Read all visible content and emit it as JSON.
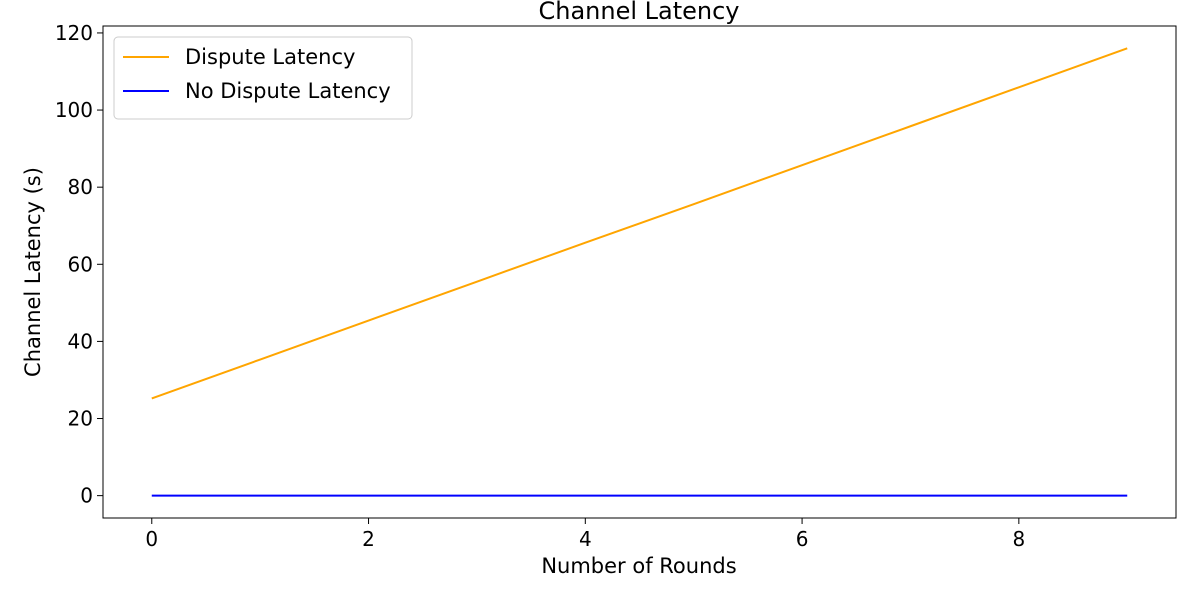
{
  "chart_data": {
    "type": "line",
    "title": "Channel Latency",
    "xlabel": "Number of Rounds",
    "ylabel": "Channel Latency (s)",
    "xlim": [
      -0.45,
      9.45
    ],
    "ylim": [
      -5.8,
      121.8
    ],
    "x_ticks": [
      0,
      2,
      4,
      6,
      8
    ],
    "y_ticks": [
      0,
      20,
      40,
      60,
      80,
      100,
      120
    ],
    "x": [
      0,
      1,
      2,
      3,
      4,
      5,
      6,
      7,
      8,
      9
    ],
    "series": [
      {
        "name": "Dispute Latency",
        "color": "#ffa500",
        "values": [
          25.2,
          35.3,
          45.4,
          55.5,
          65.6,
          75.6,
          85.7,
          95.8,
          105.9,
          116.0
        ]
      },
      {
        "name": "No Dispute Latency",
        "color": "#0000ff",
        "values": [
          0,
          0,
          0,
          0,
          0,
          0,
          0,
          0,
          0,
          0
        ]
      }
    ],
    "grid": false,
    "legend_position": "upper-left"
  }
}
